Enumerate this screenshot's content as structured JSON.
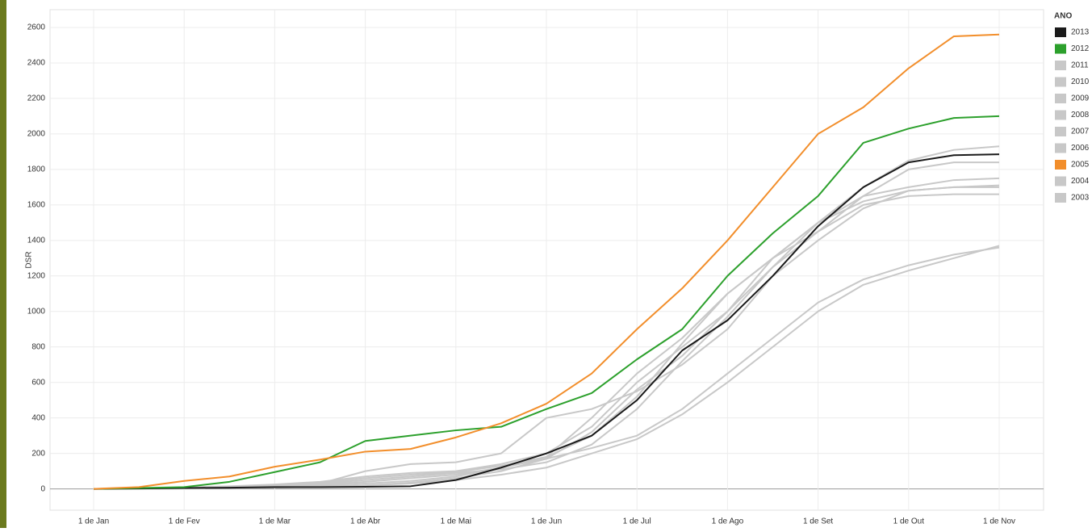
{
  "chart_data": {
    "type": "line",
    "ylabel": "DSR",
    "legend_title": "ANO",
    "legend": "right",
    "grid": true,
    "categories": [
      "1 de Jan",
      null,
      "1 de Fev",
      null,
      "1 de Mar",
      null,
      "1 de Abr",
      null,
      "1 de Mai",
      null,
      "1 de Jun",
      null,
      "1 de Jul",
      null,
      "1 de Ago",
      null,
      "1 de Set",
      null,
      "1 de Out",
      null,
      "1 de Nov"
    ],
    "ylim": [
      -120,
      2700
    ],
    "yticks": [
      0,
      200,
      400,
      600,
      800,
      1000,
      1200,
      1400,
      1600,
      1800,
      2000,
      2200,
      2400,
      2600
    ],
    "series": [
      {
        "name": "2013",
        "color": "#1a1a1a",
        "values": [
          0,
          2,
          5,
          7,
          10,
          10,
          12,
          15,
          50,
          120,
          200,
          300,
          500,
          780,
          950,
          1200,
          1480,
          1700,
          1840,
          1880,
          1885
        ]
      },
      {
        "name": "2012",
        "color": "#2ca02c",
        "values": [
          0,
          5,
          10,
          40,
          95,
          150,
          270,
          300,
          330,
          350,
          450,
          540,
          730,
          900,
          1200,
          1440,
          1650,
          1950,
          2030,
          2090,
          2100
        ]
      },
      {
        "name": "2011",
        "color": "#c8c8c8",
        "values": [
          0,
          3,
          8,
          15,
          25,
          40,
          70,
          90,
          100,
          140,
          200,
          350,
          600,
          800,
          1000,
          1300,
          1500,
          1700,
          1850,
          1910,
          1930
        ]
      },
      {
        "name": "2010",
        "color": "#c8c8c8",
        "values": [
          0,
          2,
          6,
          12,
          20,
          35,
          60,
          80,
          95,
          130,
          180,
          400,
          650,
          850,
          1100,
          1300,
          1450,
          1650,
          1800,
          1840,
          1840
        ]
      },
      {
        "name": "2009",
        "color": "#c8c8c8",
        "values": [
          0,
          2,
          5,
          10,
          15,
          25,
          40,
          60,
          80,
          120,
          170,
          320,
          560,
          750,
          1000,
          1250,
          1500,
          1650,
          1700,
          1740,
          1750
        ]
      },
      {
        "name": "2008",
        "color": "#c8c8c8",
        "values": [
          0,
          2,
          5,
          8,
          15,
          30,
          100,
          140,
          150,
          200,
          400,
          450,
          550,
          700,
          900,
          1200,
          1400,
          1580,
          1680,
          1700,
          1700
        ]
      },
      {
        "name": "2007",
        "color": "#c8c8c8",
        "values": [
          0,
          2,
          5,
          10,
          20,
          30,
          50,
          70,
          90,
          110,
          150,
          250,
          450,
          720,
          970,
          1250,
          1450,
          1600,
          1650,
          1660,
          1660
        ]
      },
      {
        "name": "2006",
        "color": "#c8c8c8",
        "values": [
          0,
          2,
          4,
          8,
          12,
          20,
          30,
          45,
          70,
          120,
          180,
          300,
          520,
          820,
          1100,
          1300,
          1500,
          1620,
          1680,
          1700,
          1710
        ]
      },
      {
        "name": "2005",
        "color": "#f28e2b",
        "values": [
          0,
          10,
          45,
          70,
          125,
          165,
          210,
          225,
          290,
          370,
          480,
          650,
          900,
          1130,
          1400,
          1700,
          2000,
          2150,
          2370,
          2550,
          2560
        ]
      },
      {
        "name": "2004",
        "color": "#c8c8c8",
        "values": [
          0,
          1,
          3,
          5,
          8,
          12,
          20,
          30,
          50,
          80,
          120,
          200,
          280,
          420,
          600,
          800,
          1000,
          1150,
          1230,
          1300,
          1370
        ]
      },
      {
        "name": "2003",
        "color": "#c8c8c8",
        "values": [
          0,
          1,
          3,
          5,
          8,
          12,
          20,
          35,
          60,
          100,
          170,
          230,
          300,
          450,
          650,
          850,
          1050,
          1180,
          1260,
          1320,
          1360
        ]
      }
    ]
  }
}
